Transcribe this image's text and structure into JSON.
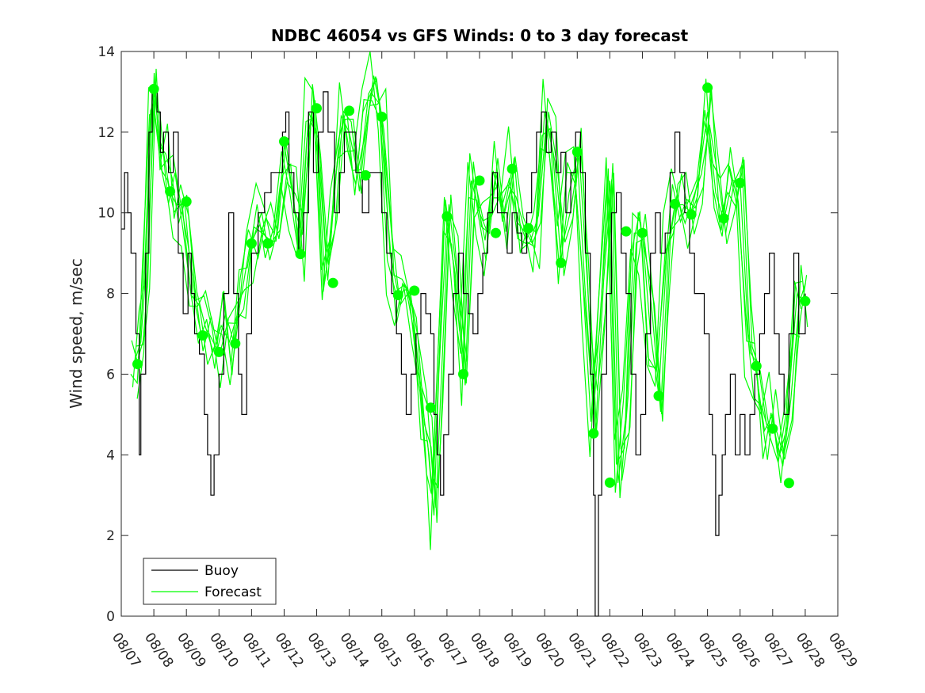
{
  "chart_data": {
    "type": "line",
    "title": "NDBC 46054 vs GFS Winds: 0 to 3 day forecast",
    "xlabel": "",
    "ylabel": "Wind speed, m/sec",
    "xlim": [
      "08/07",
      "08/29"
    ],
    "ylim": [
      0,
      14
    ],
    "y_ticks": [
      0,
      2,
      4,
      6,
      8,
      10,
      12,
      14
    ],
    "x_tick_labels": [
      "08/07",
      "08/08",
      "08/09",
      "08/10",
      "08/11",
      "08/12",
      "08/13",
      "08/14",
      "08/15",
      "08/16",
      "08/17",
      "08/18",
      "08/19",
      "08/20",
      "08/21",
      "08/22",
      "08/23",
      "08/24",
      "08/25",
      "08/26",
      "08/27",
      "08/28",
      "08/29"
    ],
    "legend": {
      "placement": "lower-left",
      "entries": [
        "Buoy",
        "Forecast"
      ]
    },
    "colors": {
      "buoy": "#000000",
      "forecast": "#00ff00"
    },
    "series": [
      {
        "name": "Buoy",
        "style": "stairs",
        "points": [
          [
            0.0,
            9.6
          ],
          [
            0.1,
            11
          ],
          [
            0.2,
            10
          ],
          [
            0.3,
            9
          ],
          [
            0.45,
            7
          ],
          [
            0.55,
            4
          ],
          [
            0.6,
            6
          ],
          [
            0.75,
            9
          ],
          [
            0.85,
            12
          ],
          [
            0.95,
            13
          ],
          [
            1.1,
            12.5
          ],
          [
            1.2,
            11.5
          ],
          [
            1.3,
            12
          ],
          [
            1.45,
            11
          ],
          [
            1.6,
            12
          ],
          [
            1.75,
            9
          ],
          [
            1.9,
            7.5
          ],
          [
            2.05,
            9
          ],
          [
            2.15,
            8
          ],
          [
            2.25,
            7
          ],
          [
            2.4,
            6.5
          ],
          [
            2.55,
            5
          ],
          [
            2.65,
            4
          ],
          [
            2.75,
            3
          ],
          [
            2.85,
            4
          ],
          [
            3.0,
            6
          ],
          [
            3.15,
            8
          ],
          [
            3.3,
            10
          ],
          [
            3.45,
            8
          ],
          [
            3.6,
            6
          ],
          [
            3.7,
            5
          ],
          [
            3.85,
            7
          ],
          [
            4.0,
            9
          ],
          [
            4.2,
            10
          ],
          [
            4.4,
            10.5
          ],
          [
            4.6,
            11
          ],
          [
            4.8,
            11
          ],
          [
            4.95,
            12
          ],
          [
            5.05,
            12.5
          ],
          [
            5.15,
            11
          ],
          [
            5.3,
            10
          ],
          [
            5.45,
            9
          ],
          [
            5.6,
            10
          ],
          [
            5.75,
            12.5
          ],
          [
            5.9,
            11
          ],
          [
            6.05,
            12
          ],
          [
            6.2,
            13
          ],
          [
            6.35,
            12
          ],
          [
            6.55,
            10
          ],
          [
            6.7,
            11
          ],
          [
            6.85,
            12
          ],
          [
            7.0,
            12
          ],
          [
            7.2,
            11
          ],
          [
            7.4,
            10
          ],
          [
            7.6,
            11
          ],
          [
            7.8,
            11
          ],
          [
            8.0,
            10
          ],
          [
            8.15,
            9
          ],
          [
            8.3,
            8
          ],
          [
            8.45,
            7
          ],
          [
            8.6,
            6
          ],
          [
            8.75,
            5
          ],
          [
            8.9,
            6
          ],
          [
            9.05,
            7
          ],
          [
            9.2,
            8
          ],
          [
            9.35,
            7.5
          ],
          [
            9.5,
            7
          ],
          [
            9.6,
            5
          ],
          [
            9.7,
            4
          ],
          [
            9.8,
            3
          ],
          [
            9.9,
            4.5
          ],
          [
            10.05,
            6
          ],
          [
            10.2,
            8
          ],
          [
            10.35,
            9
          ],
          [
            10.5,
            8
          ],
          [
            10.65,
            7.5
          ],
          [
            10.8,
            7
          ],
          [
            10.95,
            8
          ],
          [
            11.1,
            9
          ],
          [
            11.25,
            10
          ],
          [
            11.4,
            11
          ],
          [
            11.55,
            10
          ],
          [
            11.7,
            10
          ],
          [
            11.85,
            9
          ],
          [
            12.0,
            10
          ],
          [
            12.15,
            9.5
          ],
          [
            12.3,
            9
          ],
          [
            12.45,
            10
          ],
          [
            12.6,
            11
          ],
          [
            12.75,
            12
          ],
          [
            12.9,
            12.5
          ],
          [
            13.05,
            11.5
          ],
          [
            13.2,
            12
          ],
          [
            13.35,
            11
          ],
          [
            13.5,
            11.5
          ],
          [
            13.65,
            10
          ],
          [
            13.8,
            11
          ],
          [
            13.95,
            12
          ],
          [
            14.1,
            11
          ],
          [
            14.25,
            9
          ],
          [
            14.4,
            6
          ],
          [
            14.5,
            3
          ],
          [
            14.55,
            0
          ],
          [
            14.65,
            3
          ],
          [
            14.75,
            6
          ],
          [
            14.9,
            8
          ],
          [
            15.05,
            10
          ],
          [
            15.2,
            10.5
          ],
          [
            15.35,
            9
          ],
          [
            15.5,
            8
          ],
          [
            15.65,
            6
          ],
          [
            15.8,
            4
          ],
          [
            15.95,
            5
          ],
          [
            16.1,
            7
          ],
          [
            16.25,
            9
          ],
          [
            16.4,
            10
          ],
          [
            16.55,
            9
          ],
          [
            16.7,
            9.5
          ],
          [
            16.85,
            11
          ],
          [
            17.0,
            12
          ],
          [
            17.15,
            11
          ],
          [
            17.3,
            10
          ],
          [
            17.45,
            9
          ],
          [
            17.6,
            8
          ],
          [
            17.75,
            8
          ],
          [
            17.9,
            7
          ],
          [
            18.05,
            5
          ],
          [
            18.15,
            4
          ],
          [
            18.25,
            2
          ],
          [
            18.35,
            3
          ],
          [
            18.45,
            4
          ],
          [
            18.55,
            5
          ],
          [
            18.7,
            6
          ],
          [
            18.85,
            4
          ],
          [
            19.0,
            5
          ],
          [
            19.15,
            4
          ],
          [
            19.3,
            5
          ],
          [
            19.45,
            6
          ],
          [
            19.6,
            7
          ],
          [
            19.75,
            8
          ],
          [
            19.9,
            9
          ],
          [
            20.05,
            7
          ],
          [
            20.2,
            6
          ],
          [
            20.35,
            5
          ],
          [
            20.5,
            7
          ],
          [
            20.65,
            9
          ],
          [
            20.8,
            7
          ],
          [
            21.0,
            8
          ]
        ]
      },
      {
        "name": "Forecast",
        "style": "line",
        "points": [
          [
            0.4,
            6.3
          ],
          [
            0.6,
            6.8
          ],
          [
            0.75,
            8.5
          ],
          [
            0.95,
            13.0
          ],
          [
            1.1,
            12.0
          ],
          [
            1.3,
            11.5
          ],
          [
            1.5,
            10.5
          ],
          [
            1.7,
            10.2
          ],
          [
            1.95,
            10.2
          ],
          [
            2.2,
            8.0
          ],
          [
            2.45,
            7.0
          ],
          [
            2.7,
            7.0
          ],
          [
            2.95,
            6.6
          ],
          [
            3.2,
            7.5
          ],
          [
            3.45,
            6.8
          ],
          [
            3.7,
            8.0
          ],
          [
            3.95,
            9.2
          ],
          [
            4.25,
            9.7
          ],
          [
            4.5,
            9.3
          ],
          [
            4.75,
            9.3
          ],
          [
            5.0,
            11.7
          ],
          [
            5.25,
            10.5
          ],
          [
            5.5,
            9.0
          ],
          [
            5.75,
            12.5
          ],
          [
            6.0,
            12.0
          ],
          [
            6.25,
            8.3
          ],
          [
            6.5,
            10.0
          ],
          [
            6.75,
            12.4
          ],
          [
            7.0,
            12.0
          ],
          [
            7.25,
            11.0
          ],
          [
            7.5,
            12.0
          ],
          [
            7.75,
            13.4
          ],
          [
            8.0,
            12.4
          ],
          [
            8.25,
            9.0
          ],
          [
            8.5,
            8.0
          ],
          [
            8.75,
            8.1
          ],
          [
            9.0,
            7.0
          ],
          [
            9.25,
            5.2
          ],
          [
            9.45,
            4.0
          ],
          [
            9.6,
            2.5
          ],
          [
            9.75,
            6.0
          ],
          [
            10.0,
            9.8
          ],
          [
            10.25,
            8.5
          ],
          [
            10.5,
            6.0
          ],
          [
            10.75,
            10.8
          ],
          [
            11.0,
            10.0
          ],
          [
            11.25,
            9.5
          ],
          [
            11.5,
            11.0
          ],
          [
            11.75,
            10.0
          ],
          [
            12.0,
            11.1
          ],
          [
            12.25,
            9.0
          ],
          [
            12.5,
            9.7
          ],
          [
            12.75,
            9.5
          ],
          [
            13.0,
            12.5
          ],
          [
            13.25,
            11.5
          ],
          [
            13.5,
            8.8
          ],
          [
            13.75,
            10.5
          ],
          [
            14.0,
            11.4
          ],
          [
            14.25,
            8.0
          ],
          [
            14.5,
            5.0
          ],
          [
            14.75,
            8.0
          ],
          [
            15.0,
            10.8
          ],
          [
            15.25,
            3.3
          ],
          [
            15.5,
            5.0
          ],
          [
            15.75,
            9.5
          ],
          [
            16.0,
            9.5
          ],
          [
            16.25,
            7.0
          ],
          [
            16.5,
            5.5
          ],
          [
            16.75,
            9.0
          ],
          [
            17.0,
            10.2
          ],
          [
            17.25,
            10.2
          ],
          [
            17.5,
            10.0
          ],
          [
            17.75,
            11.0
          ],
          [
            18.0,
            12.5
          ],
          [
            18.25,
            10.5
          ],
          [
            18.5,
            9.8
          ],
          [
            18.75,
            10.8
          ],
          [
            19.0,
            10.8
          ],
          [
            19.25,
            7.0
          ],
          [
            19.5,
            6.0
          ],
          [
            19.75,
            4.6
          ],
          [
            20.0,
            5.0
          ],
          [
            20.25,
            3.3
          ],
          [
            20.5,
            5.5
          ],
          [
            20.75,
            8.0
          ],
          [
            20.95,
            7.8
          ]
        ]
      },
      {
        "name": "",
        "role": "forecast-markers",
        "points": [
          [
            0.5,
            6.25
          ],
          [
            1.0,
            13.07
          ],
          [
            1.5,
            10.53
          ],
          [
            2.0,
            10.28
          ],
          [
            2.5,
            6.96
          ],
          [
            3.0,
            6.55
          ],
          [
            3.5,
            6.76
          ],
          [
            4.0,
            9.24
          ],
          [
            4.5,
            9.24
          ],
          [
            5.0,
            11.77
          ],
          [
            5.5,
            8.98
          ],
          [
            6.0,
            12.59
          ],
          [
            6.5,
            8.26
          ],
          [
            7.0,
            12.53
          ],
          [
            7.5,
            10.93
          ],
          [
            8.0,
            12.38
          ],
          [
            8.5,
            7.96
          ],
          [
            9.0,
            8.07
          ],
          [
            9.5,
            5.17
          ],
          [
            10.0,
            9.91
          ],
          [
            10.5,
            6.0
          ],
          [
            11.0,
            10.8
          ],
          [
            11.5,
            9.5
          ],
          [
            12.0,
            11.09
          ],
          [
            12.5,
            9.62
          ],
          [
            13.5,
            8.76
          ],
          [
            14.0,
            11.51
          ],
          [
            14.5,
            4.53
          ],
          [
            15.0,
            3.31
          ],
          [
            15.5,
            9.54
          ],
          [
            16.0,
            9.5
          ],
          [
            16.5,
            5.46
          ],
          [
            17.0,
            10.22
          ],
          [
            17.5,
            9.96
          ],
          [
            18.0,
            13.1
          ],
          [
            18.5,
            9.86
          ],
          [
            19.0,
            10.74
          ],
          [
            19.5,
            6.2
          ],
          [
            20.0,
            4.65
          ],
          [
            20.5,
            3.3
          ],
          [
            21.0,
            7.81
          ]
        ]
      }
    ]
  }
}
